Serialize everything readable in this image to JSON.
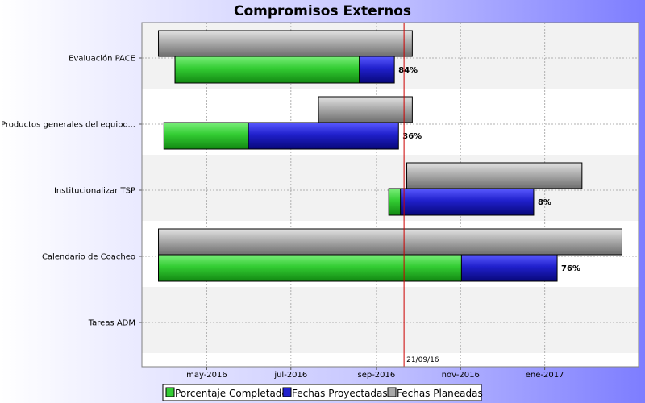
{
  "chart_data": {
    "type": "gantt",
    "title": "Compromisos Externos",
    "tasks": [
      {
        "label": "Evaluación PACE",
        "planned": [
          "2016-03-27",
          "2016-09-27"
        ],
        "projected": [
          "2016-04-08",
          "2016-09-14"
        ],
        "percent_label": "84%"
      },
      {
        "label": "Productos generales del equipo...",
        "planned": [
          "2016-07-21",
          "2016-09-27"
        ],
        "projected": [
          "2016-03-31",
          "2016-09-17"
        ],
        "percent_label": "36%"
      },
      {
        "label": "Institucionalizar TSP",
        "planned": [
          "2016-09-23",
          "2017-01-28"
        ],
        "projected": [
          "2016-09-10",
          "2016-12-24"
        ],
        "percent_label": "8%"
      },
      {
        "label": "Calendario de Coacheo",
        "planned": [
          "2016-03-27",
          "2017-02-26"
        ],
        "projected": [
          "2016-03-27",
          "2017-01-10"
        ],
        "percent_label": "76%"
      },
      {
        "label": "Tareas ADM",
        "planned": null,
        "projected": null,
        "percent_label": ""
      }
    ],
    "x_ticks": [
      "may-2016",
      "jul-2016",
      "sep-2016",
      "nov-2016",
      "ene-2017"
    ],
    "xlim": [
      "2016-03-15",
      "2017-03-10"
    ],
    "today_marker": {
      "date": "2016-09-21",
      "label": "21/09/16"
    },
    "legend": [
      {
        "name": "Porcentaje Completado",
        "color": "#33cc33"
      },
      {
        "name": "Fechas Proyectadas",
        "color": "#2020cc"
      },
      {
        "name": "Fechas Planeadas",
        "color": "#a8a8a8"
      }
    ],
    "legend_position": "bottom",
    "grid": true
  }
}
